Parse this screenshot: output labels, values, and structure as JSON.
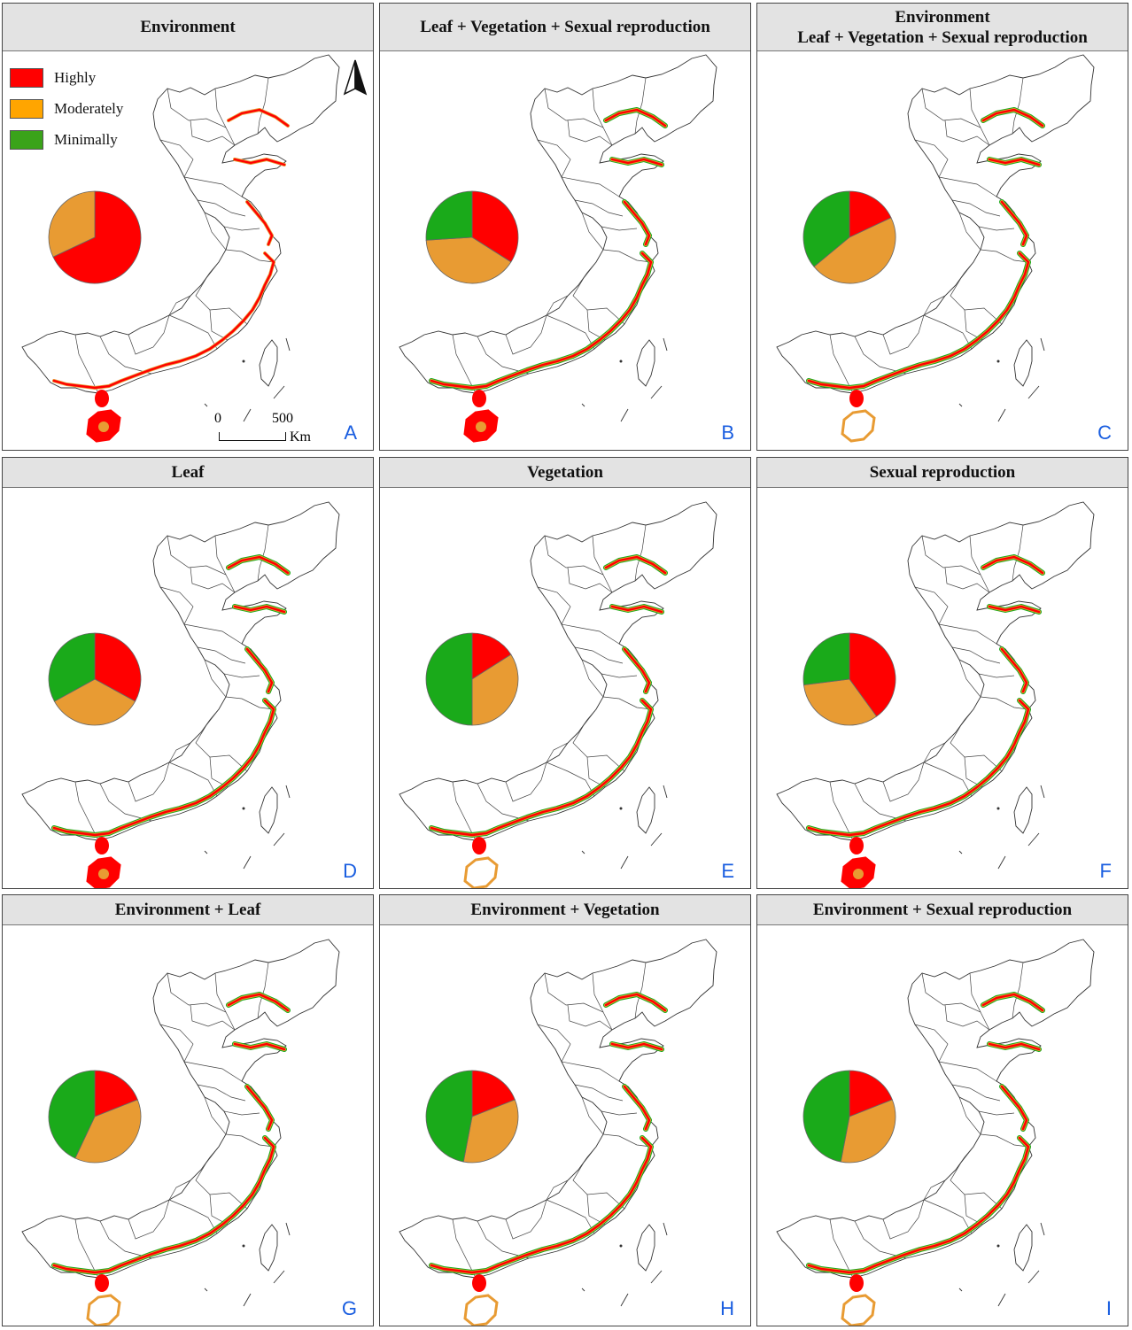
{
  "colors": {
    "highly": "#ff0000",
    "moderately": "#e89b33",
    "minimally": "#1aaa1a",
    "header_bg": "#e3e3e3",
    "letter": "#1a5ee0"
  },
  "legend": {
    "items": [
      {
        "label": "Highly",
        "color": "#ff0000"
      },
      {
        "label": "Moderately",
        "color": "#ffa500"
      },
      {
        "label": "Minimally",
        "color": "#3aa31a"
      }
    ]
  },
  "scale_bar": {
    "zero": "0",
    "max": "500",
    "unit": "Km"
  },
  "north_arrow": {
    "icon": "north-arrow-icon"
  },
  "panels": [
    {
      "id": "A",
      "title": [
        "Environment"
      ],
      "pie": {
        "highly": 0.68,
        "moderately": 0.32,
        "minimally": 0.0
      }
    },
    {
      "id": "B",
      "title": [
        "Leaf + Vegetation + Sexual reproduction"
      ],
      "pie": {
        "highly": 0.34,
        "moderately": 0.4,
        "minimally": 0.26
      }
    },
    {
      "id": "C",
      "title": [
        "Environment",
        "Leaf + Vegetation + Sexual reproduction"
      ],
      "pie": {
        "highly": 0.18,
        "moderately": 0.46,
        "minimally": 0.36
      }
    },
    {
      "id": "D",
      "title": [
        "Leaf"
      ],
      "pie": {
        "highly": 0.33,
        "moderately": 0.34,
        "minimally": 0.33
      }
    },
    {
      "id": "E",
      "title": [
        "Vegetation"
      ],
      "pie": {
        "highly": 0.16,
        "moderately": 0.34,
        "minimally": 0.5
      }
    },
    {
      "id": "F",
      "title": [
        "Sexual reproduction"
      ],
      "pie": {
        "highly": 0.4,
        "moderately": 0.33,
        "minimally": 0.27
      }
    },
    {
      "id": "G",
      "title": [
        "Environment + Leaf"
      ],
      "pie": {
        "highly": 0.19,
        "moderately": 0.38,
        "minimally": 0.43
      }
    },
    {
      "id": "H",
      "title": [
        "Environment + Vegetation"
      ],
      "pie": {
        "highly": 0.19,
        "moderately": 0.34,
        "minimally": 0.47
      }
    },
    {
      "id": "I",
      "title": [
        "Environment + Sexual reproduction"
      ],
      "pie": {
        "highly": 0.19,
        "moderately": 0.34,
        "minimally": 0.47
      }
    }
  ]
}
